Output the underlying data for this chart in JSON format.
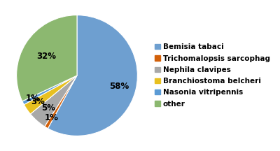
{
  "labels": [
    "Bemisia tabaci",
    "Trichomalopsis sarcophag",
    "Nephila clavipes",
    "Branchiostoma belcheri",
    "Nasonia vitripennis",
    "other"
  ],
  "values": [
    58,
    1,
    5,
    3,
    1,
    32
  ],
  "colors": [
    "#6e9fd0",
    "#d2600a",
    "#a8a8a8",
    "#e8c020",
    "#5b9bd5",
    "#8cb870"
  ],
  "pct_labels": [
    "58%",
    "1%",
    "5%",
    "3%",
    "1%",
    "32%"
  ],
  "pct_distances": [
    0.72,
    0.82,
    0.72,
    0.78,
    0.82,
    0.6
  ],
  "background_color": "#ffffff",
  "legend_fontsize": 7.5,
  "pct_fontsize": 8.5,
  "startangle": 90
}
